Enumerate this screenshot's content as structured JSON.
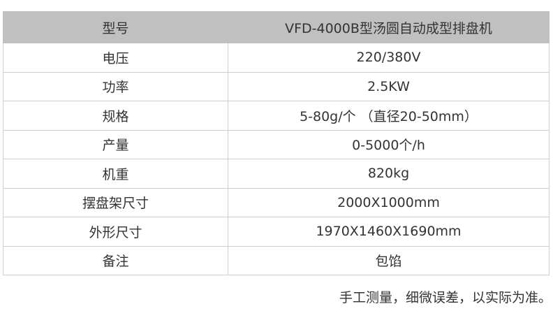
{
  "header": {
    "label": "型号",
    "value": "VFD-4000B型汤圆自动成型排盘机"
  },
  "rows": [
    {
      "label": "电压",
      "value": "220/380V"
    },
    {
      "label": "功率",
      "value": "2.5KW"
    },
    {
      "label": "规格",
      "value": "5-80g/个  （直径20-50mm）"
    },
    {
      "label": "产量",
      "value": "0-5000个/h"
    },
    {
      "label": "机重",
      "value": "820kg"
    },
    {
      "label": "摆盘架尺寸",
      "value": "2000X1000mm"
    },
    {
      "label": "外形尺寸",
      "value": "1970X1460X1690mm"
    },
    {
      "label": "备注",
      "value": "包馅"
    }
  ],
  "note": "手工测量，细微误差，以实际为准。",
  "colors": {
    "header_bg": "#c0c0c0",
    "border": "#cfcfcf"
  }
}
